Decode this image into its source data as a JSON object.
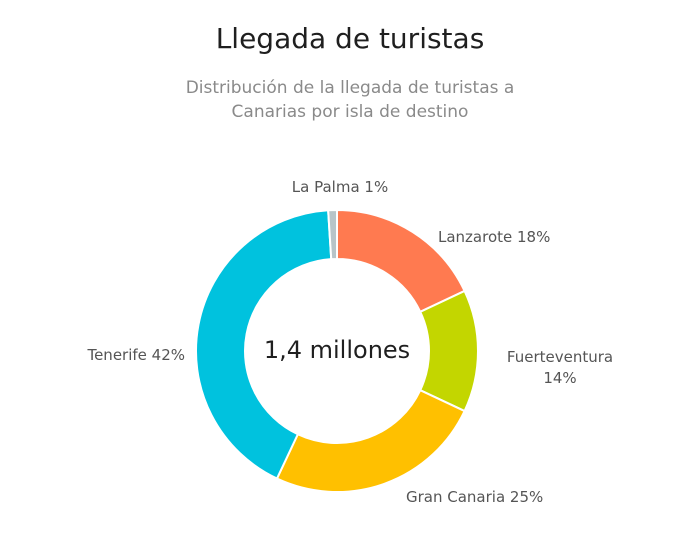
{
  "header": {
    "title": "Llegada de turistas",
    "subtitle": "Distribución de la llegada de turistas a Canarias por isla de destino"
  },
  "chart_data": {
    "type": "pie",
    "title": "Llegada de turistas",
    "subtitle": "Distribución de la llegada de turistas a Canarias por isla de destino",
    "center_label": "1,4 millones",
    "slices": [
      {
        "name": "Lanzarote",
        "value": 18,
        "label_lines": [
          "Lanzarote 18%"
        ],
        "color": "#FF7A50"
      },
      {
        "name": "Fuerteventura",
        "value": 14,
        "label_lines": [
          "Fuerteventura",
          "14%"
        ],
        "color": "#C3D600"
      },
      {
        "name": "Gran Canaria",
        "value": 25,
        "label_lines": [
          "Gran Canaria 25%"
        ],
        "color": "#FFC000"
      },
      {
        "name": "Tenerife",
        "value": 42,
        "label_lines": [
          "Tenerife 42%"
        ],
        "color": "#00C2DE"
      },
      {
        "name": "La Palma",
        "value": 1,
        "label_lines": [
          "La Palma 1%"
        ],
        "color": "#B8C4C8"
      }
    ]
  }
}
